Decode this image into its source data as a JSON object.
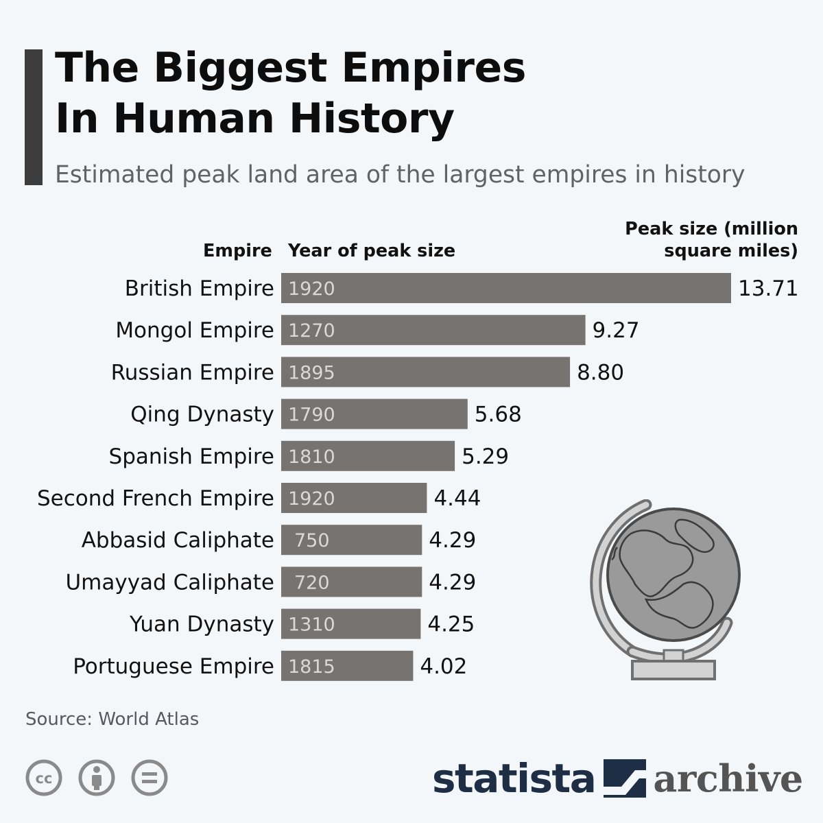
{
  "header": {
    "title_line1": "The Biggest Empires",
    "title_line2": "In Human History",
    "subtitle": "Estimated peak land area of the largest empires in history"
  },
  "columns": {
    "empire": "Empire",
    "year": "Year of peak size",
    "peak_line1": "Peak size (million",
    "peak_line2": "square miles)"
  },
  "chart_data": {
    "type": "bar",
    "orientation": "horizontal",
    "categories": [
      "British Empire",
      "Mongol Empire",
      "Russian Empire",
      "Qing Dynasty",
      "Spanish Empire",
      "Second French Empire",
      "Abbasid Caliphate",
      "Umayyad Caliphate",
      "Yuan Dynasty",
      "Portuguese Empire"
    ],
    "years": [
      "1920",
      "1270",
      "1895",
      "1790",
      "1810",
      "1920",
      "750",
      "720",
      "1310",
      "1815"
    ],
    "values": [
      13.71,
      9.27,
      8.8,
      5.68,
      5.29,
      4.44,
      4.29,
      4.29,
      4.25,
      4.02
    ],
    "value_labels": [
      "13.71",
      "9.27",
      "8.80",
      "5.68",
      "5.29",
      "4.44",
      "4.29",
      "4.29",
      "4.25",
      "4.02"
    ],
    "bar_color": "#777370",
    "year_label_color": "#d9d9d9"
  },
  "footer": {
    "source": "Source: World Atlas",
    "brand_left": "statista",
    "brand_right": "archive"
  },
  "icons": [
    "creative-commons-icon",
    "attribution-icon",
    "no-derivatives-icon",
    "statista-logo-icon",
    "globe-icon"
  ],
  "colors": {
    "background": "#f4f7fa",
    "accent_bar": "#3d3d3d",
    "brand_dark": "#1d2e45",
    "brand_grey": "#545454"
  }
}
